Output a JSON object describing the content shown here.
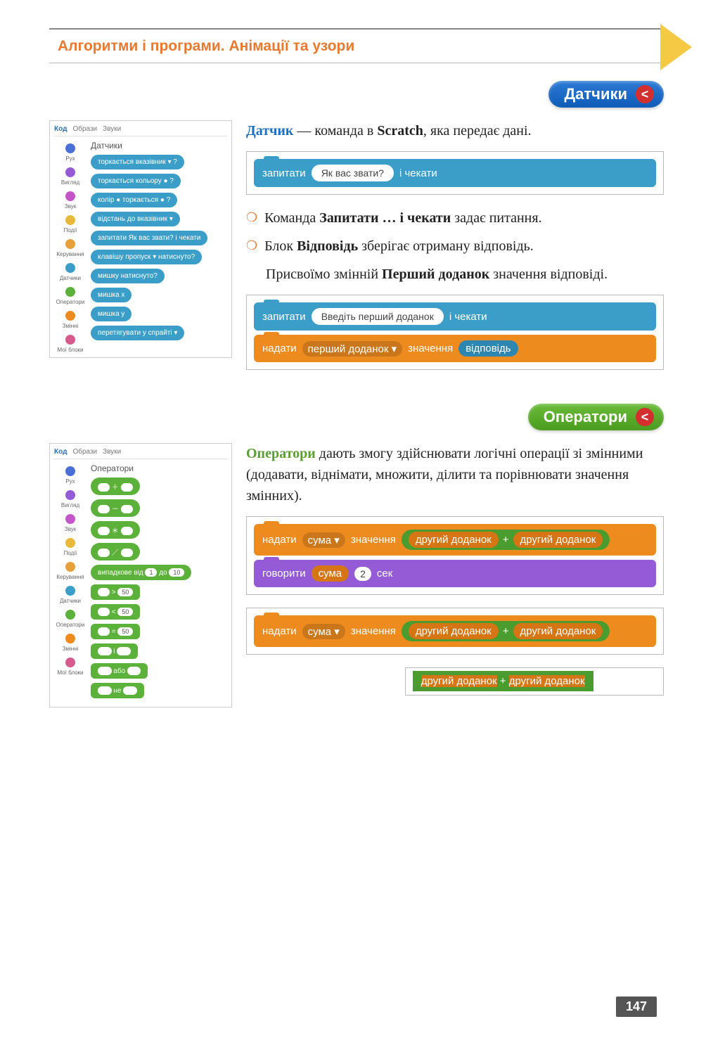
{
  "header": {
    "title": "Алгоритми і програми. Анімації та узори"
  },
  "badges": {
    "sensors": "Датчики",
    "operators": "Оператори",
    "chevron": "<"
  },
  "scratch": {
    "tabs": {
      "code": "Код",
      "costumes": "Образи",
      "sounds": "Звуки"
    },
    "categories": [
      {
        "color": "#4a6fd6",
        "label": "Рух"
      },
      {
        "color": "#955bd6",
        "label": "Вигляд"
      },
      {
        "color": "#c355c9",
        "label": "Звук"
      },
      {
        "color": "#e8b93a",
        "label": "Події"
      },
      {
        "color": "#e8a13a",
        "label": "Керування"
      },
      {
        "color": "#3a9ec9",
        "label": "Датчики"
      },
      {
        "color": "#5cb13a",
        "label": "Оператори"
      },
      {
        "color": "#ee8b1f",
        "label": "Змінні"
      },
      {
        "color": "#d65a8e",
        "label": "Мої блоки"
      }
    ],
    "sensors_panel": {
      "title": "Датчики",
      "blocks": [
        "торкається  вказівник ▾ ?",
        "торкається кольору  ● ?",
        "колір  ●  торкається  ● ?",
        "відстань до  вказівник ▾",
        "запитати  Як вас звати?  і чекати",
        "клавішу  пропуск ▾  натиснуто?",
        "мишку натиснуто?",
        "мишка x",
        "мишка y",
        "перетягувати  у спрайті ▾"
      ]
    },
    "operators_panel": {
      "title": "Оператори",
      "blocks_math": [
        "＋",
        "－",
        "＊",
        "／"
      ],
      "random": {
        "label": "випадкове від",
        "a": "1",
        "to": "до",
        "b": "10"
      },
      "cmp": [
        {
          "op": ">",
          "val": "50"
        },
        {
          "op": "<",
          "val": "50"
        },
        {
          "op": "=",
          "val": "50"
        }
      ],
      "logic": [
        "і",
        "або",
        "не"
      ]
    }
  },
  "text": {
    "sensor_def_term": "Датчик",
    "sensor_def_rest": " — команда в ",
    "sensor_def_bold": "Scratch",
    "sensor_def_end": ", яка передає дані.",
    "ask_block": {
      "ask": "запитати",
      "value": "Як вас звати?",
      "wait": "і чекати"
    },
    "bullet1_a": "Команда ",
    "bullet1_b": "Запитати … і чекати",
    "bullet1_c": " задає питання.",
    "bullet2_a": "Блок ",
    "bullet2_b": "Відповідь",
    "bullet2_c": " зберігає отриману відповідь.",
    "assign_a": "Присвоїмо змінній ",
    "assign_b": "Перший доданок",
    "assign_c": " значення відповіді.",
    "demo2": {
      "ask": "запитати",
      "ask_val": "Введіть перший доданок",
      "wait": "і чекати",
      "set": "надати",
      "var": "перший доданок ▾",
      "value": "значення",
      "answer": "відповідь"
    },
    "operators_def_term": "Оператори",
    "operators_def_rest": " дають змогу здійснювати логічні операції зі змінними (додавати, віднімати, множити, ділити та порівнювати значення змінних).",
    "demo3a": {
      "set": "надати",
      "var": "сума ▾",
      "value": "значення",
      "op_a": "другий доданок",
      "plus": "+",
      "op_b": "другий доданок",
      "say": "говорити",
      "say_var": "сума",
      "secs": "2",
      "sec_lbl": "сек"
    },
    "demo3b": {
      "set": "надати",
      "var": "сума ▾",
      "value": "значення",
      "op_a": "другий доданок",
      "plus": "+",
      "op_b": "другий доданок"
    },
    "demo3c": {
      "op_a": "другий доданок",
      "plus": "+",
      "op_b": "другий доданок"
    }
  },
  "page_number": "147"
}
